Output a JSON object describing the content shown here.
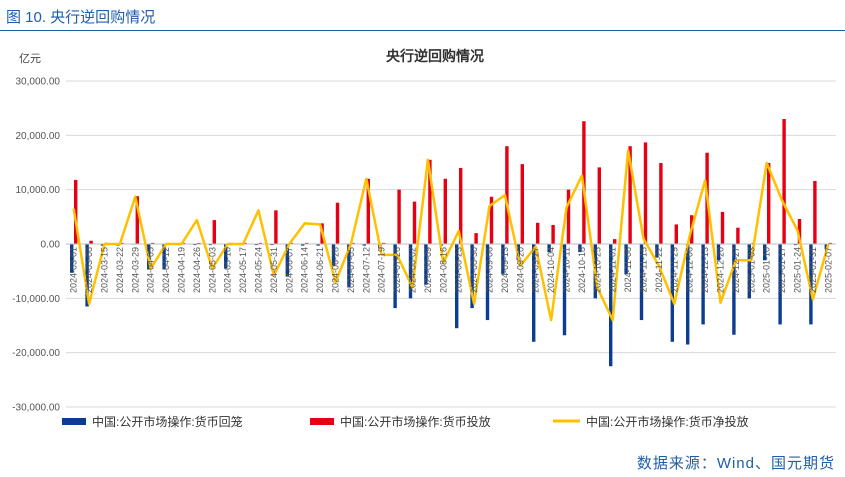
{
  "caption": "图 10. 央行逆回购情况",
  "source": "数据来源：Wind、国元期货",
  "chart_data": {
    "type": "bar",
    "title": "央行逆回购情况",
    "ylabel": "亿元",
    "ylim": [
      -30000,
      30000
    ],
    "yticks": [
      "30,000.00",
      "20,000.00",
      "10,000.00",
      "0.00",
      "-10,000.00",
      "-20,000.00",
      "-30,000.00"
    ],
    "ytick_values": [
      30000,
      20000,
      10000,
      0,
      -10000,
      -20000,
      -30000
    ],
    "grid": true,
    "legend_position": "bottom",
    "x_labels": [
      "2024-03-01",
      "2024-03-08",
      "2024-03-15",
      "2024-03-22",
      "2024-03-29",
      "2024-04-05",
      "2024-04-12",
      "2024-04-19",
      "2024-04-26",
      "2024-05-03",
      "2024-05-10",
      "2024-05-17",
      "2024-05-24",
      "2024-05-31",
      "2024-06-07",
      "2024-06-14",
      "2024-06-21",
      "2024-06-28",
      "2024-07-05",
      "2024-07-12",
      "2024-07-19",
      "2024-07-26",
      "2024-08-02",
      "2024-08-09",
      "2024-08-16",
      "2024-08-23",
      "2024-08-30",
      "2024-09-06",
      "2024-09-13",
      "2024-09-20",
      "2024-09-27",
      "2024-10-04",
      "2024-10-11",
      "2024-10-18",
      "2024-10-25",
      "2024-11-01",
      "2024-11-08",
      "2024-11-15",
      "2024-11-22",
      "2024-11-29",
      "2024-12-06",
      "2024-12-13",
      "2024-12-20",
      "2024-12-27",
      "2025-01-03",
      "2025-01-10",
      "2025-01-17",
      "2025-01-24",
      "2025-01-31",
      "2025-02-07"
    ],
    "series": [
      {
        "name": "中国:公开市场操作:货币回笼",
        "color": "#0b3d91",
        "values": [
          -5300,
          -11500,
          -300,
          -300,
          -100,
          -4700,
          -4700,
          -200,
          -200,
          -200,
          -4500,
          -200,
          -200,
          -200,
          -6000,
          -300,
          -300,
          -4000,
          -8000,
          -300,
          -700,
          -11800,
          -10000,
          -7500,
          -300,
          -15500,
          -11800,
          -14000,
          -5500,
          -3000,
          -18000,
          -1500,
          -16800,
          -1500,
          -10000,
          -22500,
          -5500,
          -14000,
          -2500,
          -18000,
          -18500,
          -14800,
          -3000,
          -16700,
          -10000,
          -3000,
          -14800,
          -200,
          -14800,
          -1000
        ]
      },
      {
        "name": "中国:公开市场操作:货币投放",
        "color": "#e60012",
        "values": [
          11800,
          600,
          200,
          200,
          8800,
          200,
          200,
          200,
          200,
          4400,
          200,
          200,
          200,
          6200,
          200,
          200,
          3800,
          7600,
          200,
          12000,
          200,
          10000,
          7800,
          15500,
          12000,
          14000,
          2000,
          8700,
          18000,
          14700,
          3900,
          3500,
          10000,
          22600,
          14100,
          900,
          18000,
          18700,
          14900,
          3600,
          5300,
          16800,
          5900,
          3000,
          200,
          14900,
          23000,
          4600,
          11600,
          200
        ]
      },
      {
        "name": "中国:公开市场操作:货币净投放",
        "color": "#ffc000",
        "values": [
          6500,
          -11000,
          0,
          0,
          8700,
          -4500,
          0,
          0,
          4400,
          -4500,
          0,
          0,
          6200,
          -5800,
          0,
          3800,
          3600,
          -7000,
          0,
          12000,
          -2000,
          -2000,
          -8000,
          15500,
          -3500,
          2400,
          -11000,
          7000,
          9000,
          -4000,
          -500,
          -14000,
          6700,
          12600,
          -8000,
          -14000,
          17200,
          1000,
          -4000,
          -11000,
          1500,
          11700,
          -10800,
          -3000,
          -3000,
          14900,
          8000,
          2500,
          -10200,
          0
        ]
      }
    ]
  }
}
